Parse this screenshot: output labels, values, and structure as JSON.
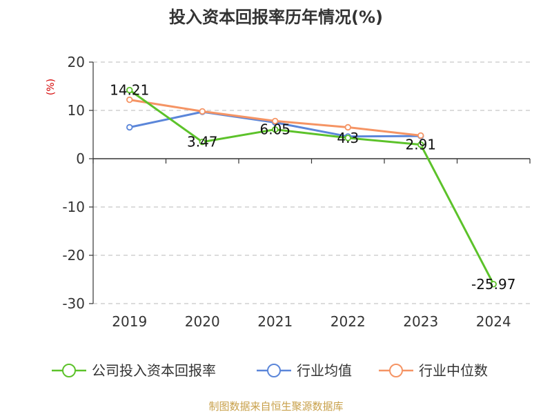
{
  "chart_data": {
    "type": "line",
    "title": "投入资本回报率历年情况(%)",
    "ylabel": "(%)",
    "xlabel": "",
    "categories": [
      "2019",
      "2020",
      "2021",
      "2022",
      "2023",
      "2024"
    ],
    "ylim": [
      -30,
      20
    ],
    "yticks": [
      20,
      10,
      0,
      -10,
      -20,
      -30
    ],
    "grid": true,
    "legend_position": "bottom",
    "series": [
      {
        "name": "公司投入资本回报率",
        "color": "#5cc22a",
        "values": [
          14.21,
          3.47,
          6.05,
          4.3,
          2.91,
          -25.97
        ],
        "labels": [
          "14.21",
          "3.47",
          "6.05",
          "4.3",
          "2.91",
          "-25.97"
        ]
      },
      {
        "name": "行业均值",
        "color": "#5b86d9",
        "values": [
          6.5,
          9.7,
          7.5,
          4.6,
          4.7,
          null
        ]
      },
      {
        "name": "行业中位数",
        "color": "#f59464",
        "values": [
          12.2,
          9.8,
          7.8,
          6.5,
          4.8,
          null
        ]
      }
    ],
    "source": "制图数据来自恒生聚源数据库"
  }
}
